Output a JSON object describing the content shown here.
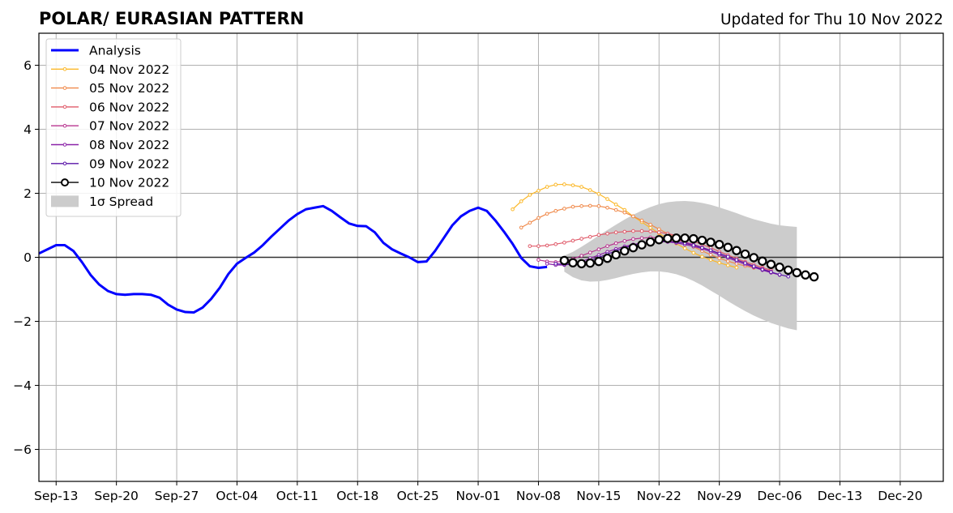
{
  "chart_data": {
    "type": "line",
    "title": "POLAR/ EURASIAN  PATTERN",
    "subtitle": "Updated for Thu 10 Nov 2022",
    "xlabel": "",
    "ylabel": "",
    "xlim": [
      "2022-09-11",
      "2022-12-25"
    ],
    "ylim": [
      -7,
      7
    ],
    "x_ticks": [
      {
        "date": "2022-09-13",
        "label": "Sep-13"
      },
      {
        "date": "2022-09-20",
        "label": "Sep-20"
      },
      {
        "date": "2022-09-27",
        "label": "Sep-27"
      },
      {
        "date": "2022-10-04",
        "label": "Oct-04"
      },
      {
        "date": "2022-10-11",
        "label": "Oct-11"
      },
      {
        "date": "2022-10-18",
        "label": "Oct-18"
      },
      {
        "date": "2022-10-25",
        "label": "Oct-25"
      },
      {
        "date": "2022-11-01",
        "label": "Nov-01"
      },
      {
        "date": "2022-11-08",
        "label": "Nov-08"
      },
      {
        "date": "2022-11-15",
        "label": "Nov-15"
      },
      {
        "date": "2022-11-22",
        "label": "Nov-22"
      },
      {
        "date": "2022-11-29",
        "label": "Nov-29"
      },
      {
        "date": "2022-12-06",
        "label": "Dec-06"
      },
      {
        "date": "2022-12-13",
        "label": "Dec-13"
      },
      {
        "date": "2022-12-20",
        "label": "Dec-20"
      }
    ],
    "y_ticks": [
      {
        "value": 6,
        "label": "6"
      },
      {
        "value": 4,
        "label": "4"
      },
      {
        "value": 2,
        "label": "2"
      },
      {
        "value": 0,
        "label": "0"
      },
      {
        "value": -2,
        "label": "−2"
      },
      {
        "value": -4,
        "label": "−4"
      },
      {
        "value": -6,
        "label": "−6"
      }
    ],
    "grid": true,
    "legend_position": "top-left",
    "series": [
      {
        "name": "Analysis",
        "color": "#0000ff",
        "start": "2022-09-11",
        "values": [
          0.12,
          0.25,
          0.38,
          0.38,
          0.2,
          -0.15,
          -0.55,
          -0.85,
          -1.05,
          -1.15,
          -1.17,
          -1.15,
          -1.15,
          -1.17,
          -1.26,
          -1.48,
          -1.63,
          -1.71,
          -1.72,
          -1.57,
          -1.3,
          -0.95,
          -0.52,
          -0.2,
          -0.02,
          0.15,
          0.38,
          0.65,
          0.9,
          1.15,
          1.35,
          1.5,
          1.55,
          1.6,
          1.45,
          1.25,
          1.06,
          0.98,
          0.97,
          0.78,
          0.45,
          0.25,
          0.12,
          0.0,
          -0.15,
          -0.13,
          0.2,
          0.6,
          1.0,
          1.28,
          1.45,
          1.55,
          1.45,
          1.15,
          0.8,
          0.42,
          -0.02,
          -0.28,
          -0.33,
          -0.3
        ]
      },
      {
        "name": "04 Nov 2022",
        "color": "#fbb829",
        "start": "2022-11-05",
        "values": [
          1.5,
          1.75,
          1.95,
          2.08,
          2.2,
          2.27,
          2.28,
          2.25,
          2.2,
          2.1,
          1.98,
          1.82,
          1.65,
          1.48,
          1.28,
          1.1,
          0.92,
          0.75,
          0.58,
          0.43,
          0.28,
          0.14,
          0.02,
          -0.08,
          -0.17,
          -0.25,
          -0.32
        ]
      },
      {
        "name": "05 Nov 2022",
        "color": "#f08a4b",
        "start": "2022-11-06",
        "values": [
          0.93,
          1.08,
          1.23,
          1.36,
          1.45,
          1.52,
          1.58,
          1.6,
          1.61,
          1.6,
          1.55,
          1.48,
          1.4,
          1.28,
          1.15,
          1.02,
          0.88,
          0.74,
          0.6,
          0.46,
          0.33,
          0.2,
          0.08,
          -0.03,
          -0.12,
          -0.2,
          -0.27,
          -0.33
        ]
      },
      {
        "name": "06 Nov 2022",
        "color": "#e05b6a",
        "start": "2022-11-07",
        "values": [
          0.35,
          0.35,
          0.37,
          0.41,
          0.46,
          0.52,
          0.58,
          0.64,
          0.7,
          0.74,
          0.78,
          0.8,
          0.82,
          0.82,
          0.81,
          0.78,
          0.74,
          0.68,
          0.6,
          0.5,
          0.4,
          0.3,
          0.18,
          0.07,
          -0.04,
          -0.14,
          -0.23,
          -0.32,
          -0.4
        ]
      },
      {
        "name": "07 Nov 2022",
        "color": "#b8348f",
        "start": "2022-11-08",
        "values": [
          -0.08,
          -0.13,
          -0.15,
          -0.12,
          -0.05,
          0.05,
          0.15,
          0.25,
          0.35,
          0.44,
          0.51,
          0.57,
          0.6,
          0.62,
          0.61,
          0.58,
          0.54,
          0.48,
          0.4,
          0.31,
          0.22,
          0.12,
          0.02,
          -0.08,
          -0.18,
          -0.28,
          -0.36,
          -0.44
        ]
      },
      {
        "name": "08 Nov 2022",
        "color": "#8b22a8",
        "start": "2022-11-09",
        "values": [
          -0.2,
          -0.24,
          -0.24,
          -0.2,
          -0.13,
          -0.03,
          0.07,
          0.17,
          0.26,
          0.34,
          0.4,
          0.45,
          0.48,
          0.49,
          0.48,
          0.45,
          0.4,
          0.34,
          0.27,
          0.18,
          0.08,
          -0.02,
          -0.12,
          -0.22,
          -0.31,
          -0.4,
          -0.48,
          -0.55
        ]
      },
      {
        "name": "09 Nov 2022",
        "color": "#5a14a8",
        "start": "2022-11-10",
        "values": [
          -0.2,
          -0.22,
          -0.22,
          -0.18,
          -0.1,
          0.0,
          0.1,
          0.2,
          0.3,
          0.38,
          0.44,
          0.48,
          0.5,
          0.5,
          0.48,
          0.44,
          0.38,
          0.3,
          0.22,
          0.12,
          0.02,
          -0.08,
          -0.18,
          -0.28,
          -0.38,
          -0.46,
          -0.54,
          -0.6
        ]
      },
      {
        "name": "10 Nov 2022",
        "color": "#000000",
        "marker": "open-circle",
        "start": "2022-11-11",
        "values": [
          -0.1,
          -0.17,
          -0.2,
          -0.18,
          -0.13,
          -0.03,
          0.08,
          0.2,
          0.3,
          0.39,
          0.48,
          0.55,
          0.59,
          0.6,
          0.6,
          0.58,
          0.53,
          0.47,
          0.4,
          0.31,
          0.21,
          0.1,
          -0.01,
          -0.12,
          -0.22,
          -0.31,
          -0.4,
          -0.48,
          -0.55,
          -0.61
        ]
      }
    ],
    "spread": {
      "name": "1σ Spread",
      "color": "#cccccc",
      "start": "2022-11-11",
      "lower": [
        -0.45,
        -0.62,
        -0.72,
        -0.76,
        -0.75,
        -0.71,
        -0.65,
        -0.58,
        -0.52,
        -0.47,
        -0.44,
        -0.44,
        -0.47,
        -0.53,
        -0.62,
        -0.74,
        -0.88,
        -1.04,
        -1.2,
        -1.37,
        -1.53,
        -1.68,
        -1.82,
        -1.94,
        -2.05,
        -2.14,
        -2.22,
        -2.28
      ],
      "upper": [
        0.05,
        0.17,
        0.33,
        0.5,
        0.68,
        0.85,
        1.02,
        1.18,
        1.33,
        1.46,
        1.57,
        1.66,
        1.72,
        1.75,
        1.76,
        1.74,
        1.7,
        1.64,
        1.56,
        1.47,
        1.38,
        1.28,
        1.19,
        1.12,
        1.05,
        1.0,
        0.97,
        0.95
      ]
    }
  }
}
